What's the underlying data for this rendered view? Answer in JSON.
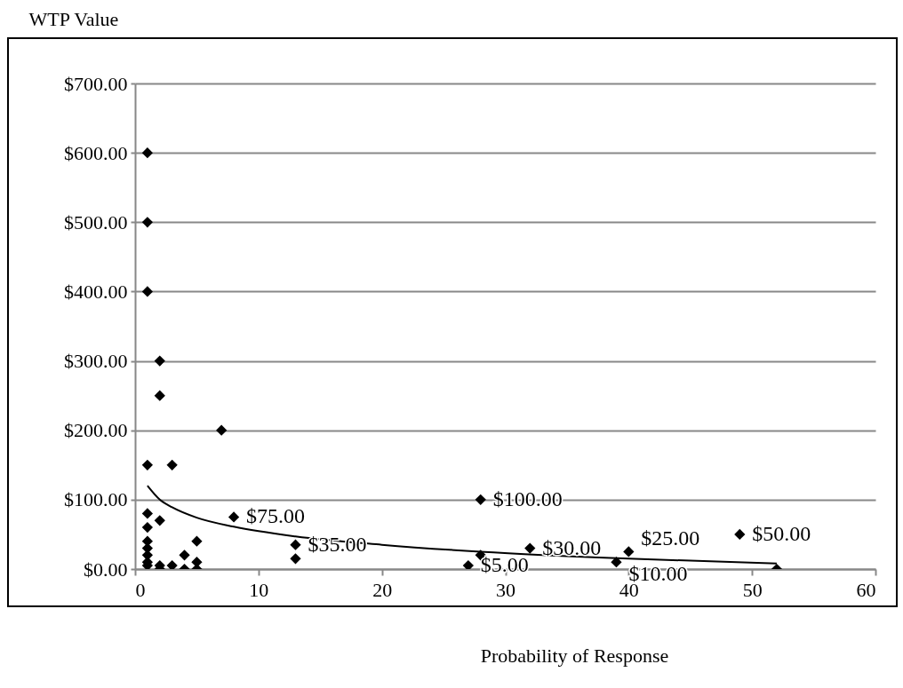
{
  "chart_data": {
    "type": "scatter",
    "xlabel": "Probability of Response",
    "ylabel": "WTP Value",
    "marker": "diamond",
    "grid": "y",
    "xlim": [
      0,
      60
    ],
    "xticks": [
      0,
      10,
      20,
      30,
      40,
      50,
      60
    ],
    "ylim": [
      0,
      700
    ],
    "yticks": [
      {
        "value": 0,
        "label": "$0.00"
      },
      {
        "value": 100,
        "label": "$100.00"
      },
      {
        "value": 200,
        "label": "$200.00"
      },
      {
        "value": 300,
        "label": "$300.00"
      },
      {
        "value": 400,
        "label": "$400.00"
      },
      {
        "value": 500,
        "label": "$500.00"
      },
      {
        "value": 600,
        "label": "$600.00"
      },
      {
        "value": 700,
        "label": "$700.00"
      }
    ],
    "series": [
      {
        "color": "#000000",
        "x": [
          1,
          1,
          1,
          1,
          1,
          1,
          1,
          1,
          1,
          1,
          1,
          2,
          2,
          2,
          2,
          2,
          3,
          3,
          4,
          4,
          5,
          5,
          5,
          7,
          8,
          13,
          13,
          27,
          28,
          28,
          32,
          39,
          40,
          49,
          52
        ],
        "values": [
          600,
          500,
          400,
          150,
          80,
          60,
          40,
          30,
          20,
          10,
          5,
          300,
          250,
          70,
          5,
          0,
          150,
          5,
          20,
          0,
          40,
          10,
          0,
          200,
          75,
          35,
          15,
          5,
          100,
          20,
          30,
          10,
          25,
          50,
          0
        ]
      },
      {
        "type": "line",
        "marker": "none",
        "color": "#000000",
        "x": [
          1,
          2,
          3,
          5,
          8,
          13,
          20,
          28,
          40,
          52
        ],
        "values": [
          120,
          100,
          89,
          74,
          61,
          47,
          35,
          25,
          15,
          8
        ]
      }
    ],
    "annotations": [
      {
        "text": "$75.00",
        "x": 8,
        "y": 75
      },
      {
        "text": "$35.00",
        "x": 13,
        "y": 35
      },
      {
        "text": "$5.00",
        "x": 27,
        "y": 5
      },
      {
        "text": "$100.00",
        "x": 28,
        "y": 100
      },
      {
        "text": "$30.00",
        "x": 32,
        "y": 30
      },
      {
        "text": "$25.00",
        "x": 40,
        "y": 25
      },
      {
        "text": "$10.00",
        "x": 39,
        "y": 10
      },
      {
        "text": "$50.00",
        "x": 49,
        "y": 50
      }
    ]
  }
}
